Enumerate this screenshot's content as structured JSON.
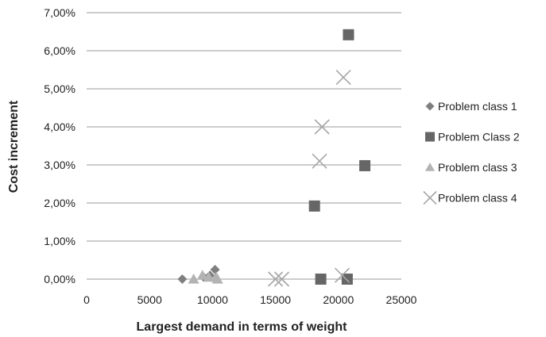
{
  "chart_data": {
    "type": "scatter",
    "xlabel": "Largest demand in terms of weight",
    "ylabel": "Cost increment",
    "xlim": [
      0,
      25000
    ],
    "ylim": [
      0,
      7
    ],
    "x_ticks": [
      "0",
      "5000",
      "10000",
      "15000",
      "20000",
      "25000"
    ],
    "y_ticks": [
      "0,00%",
      "1,00%",
      "2,00%",
      "3,00%",
      "4,00%",
      "5,00%",
      "6,00%",
      "7,00%"
    ],
    "grid": "horizontal",
    "legend_position": "right",
    "series": [
      {
        "name": "Problem class 1",
        "marker": "diamond",
        "color": "#7f7f7f",
        "points": [
          [
            7600,
            0.0
          ],
          [
            9300,
            0.05
          ],
          [
            9800,
            0.1
          ],
          [
            10200,
            0.25
          ]
        ]
      },
      {
        "name": "Problem Class 2",
        "marker": "square",
        "color": "#666666",
        "points": [
          [
            18100,
            1.92
          ],
          [
            18600,
            0.0
          ],
          [
            20700,
            0.0
          ],
          [
            20800,
            6.42
          ],
          [
            22100,
            2.98
          ]
        ]
      },
      {
        "name": "Problem class 3",
        "marker": "triangle",
        "color": "#b3b3b3",
        "points": [
          [
            8500,
            0.0
          ],
          [
            9200,
            0.1
          ],
          [
            9700,
            0.05
          ],
          [
            10300,
            0.05
          ],
          [
            10400,
            0.0
          ]
        ]
      },
      {
        "name": "Problem class 4",
        "marker": "x",
        "color": "#a6a6a6",
        "points": [
          [
            15000,
            0.0
          ],
          [
            15500,
            0.0
          ],
          [
            18500,
            3.1
          ],
          [
            18700,
            4.0
          ],
          [
            20300,
            0.1
          ],
          [
            20400,
            5.3
          ]
        ]
      }
    ]
  }
}
